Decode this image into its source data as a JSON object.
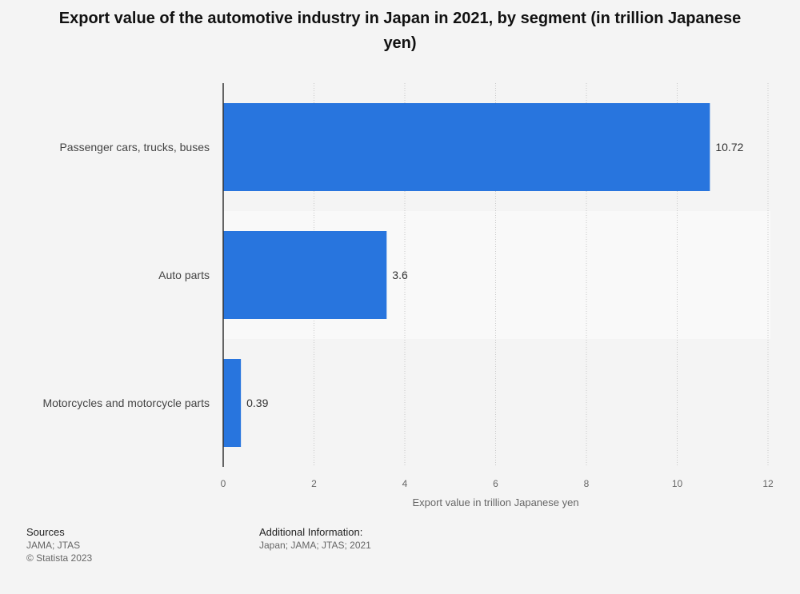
{
  "chart_data": {
    "type": "bar",
    "orientation": "horizontal",
    "title": "Export value of the automotive industry in Japan in 2021, by segment (in trillion Japanese yen)",
    "categories": [
      "Passenger cars, trucks, buses",
      "Auto parts",
      "Motorcycles and motorcycle parts"
    ],
    "values": [
      10.72,
      3.6,
      0.39
    ],
    "value_labels": [
      "10.72",
      "3.6",
      "0.39"
    ],
    "xlabel": "Export value in trillion Japanese yen",
    "ylabel": "",
    "xlim": [
      0,
      12
    ],
    "xticks": [
      0,
      2,
      4,
      6,
      8,
      10,
      12
    ],
    "grid": true,
    "bar_color": "#2875de"
  },
  "footer": {
    "sources_heading": "Sources",
    "sources_text": "JAMA; JTAS",
    "copyright": "© Statista 2023",
    "additional_heading": "Additional Information:",
    "additional_text": "Japan; JAMA; JTAS; 2021"
  }
}
